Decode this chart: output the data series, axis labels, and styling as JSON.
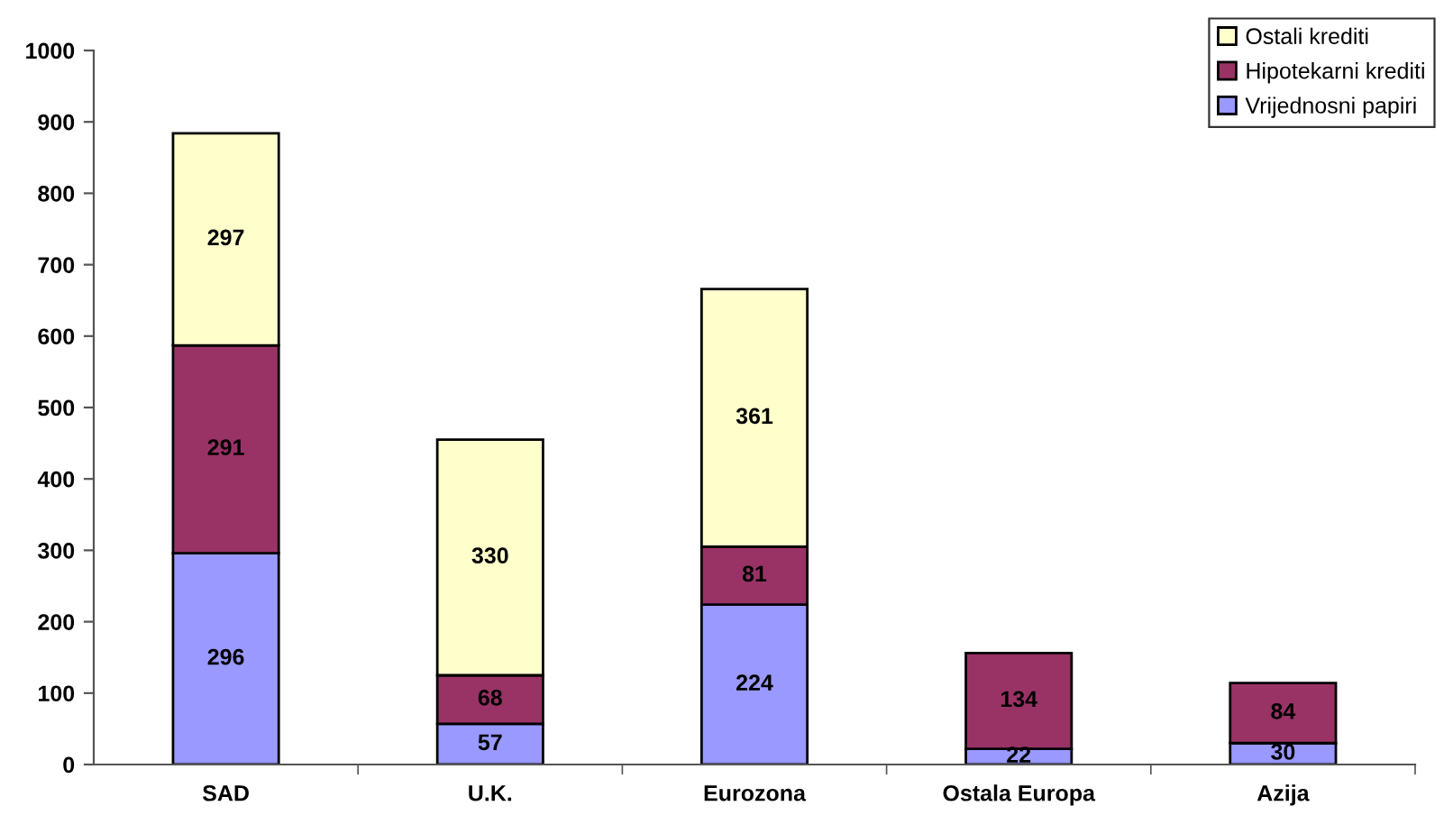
{
  "chart_data": {
    "type": "bar",
    "stacked": true,
    "categories": [
      "SAD",
      "U.K.",
      "Eurozona",
      "Ostala Europa",
      "Azija"
    ],
    "series": [
      {
        "name": "Vrijednosni papiri",
        "color": "#9999ff",
        "values": [
          296,
          57,
          224,
          22,
          30
        ]
      },
      {
        "name": "Hipotekarni krediti",
        "color": "#993366",
        "values": [
          291,
          68,
          81,
          134,
          84
        ]
      },
      {
        "name": "Ostali krediti",
        "color": "#ffffcc",
        "values": [
          297,
          330,
          361,
          null,
          null
        ]
      }
    ],
    "ylim": [
      0,
      1000
    ],
    "yticks": [
      0,
      100,
      200,
      300,
      400,
      500,
      600,
      700,
      800,
      900,
      1000
    ],
    "data_labels": true,
    "legend": "top right",
    "grid": false
  }
}
